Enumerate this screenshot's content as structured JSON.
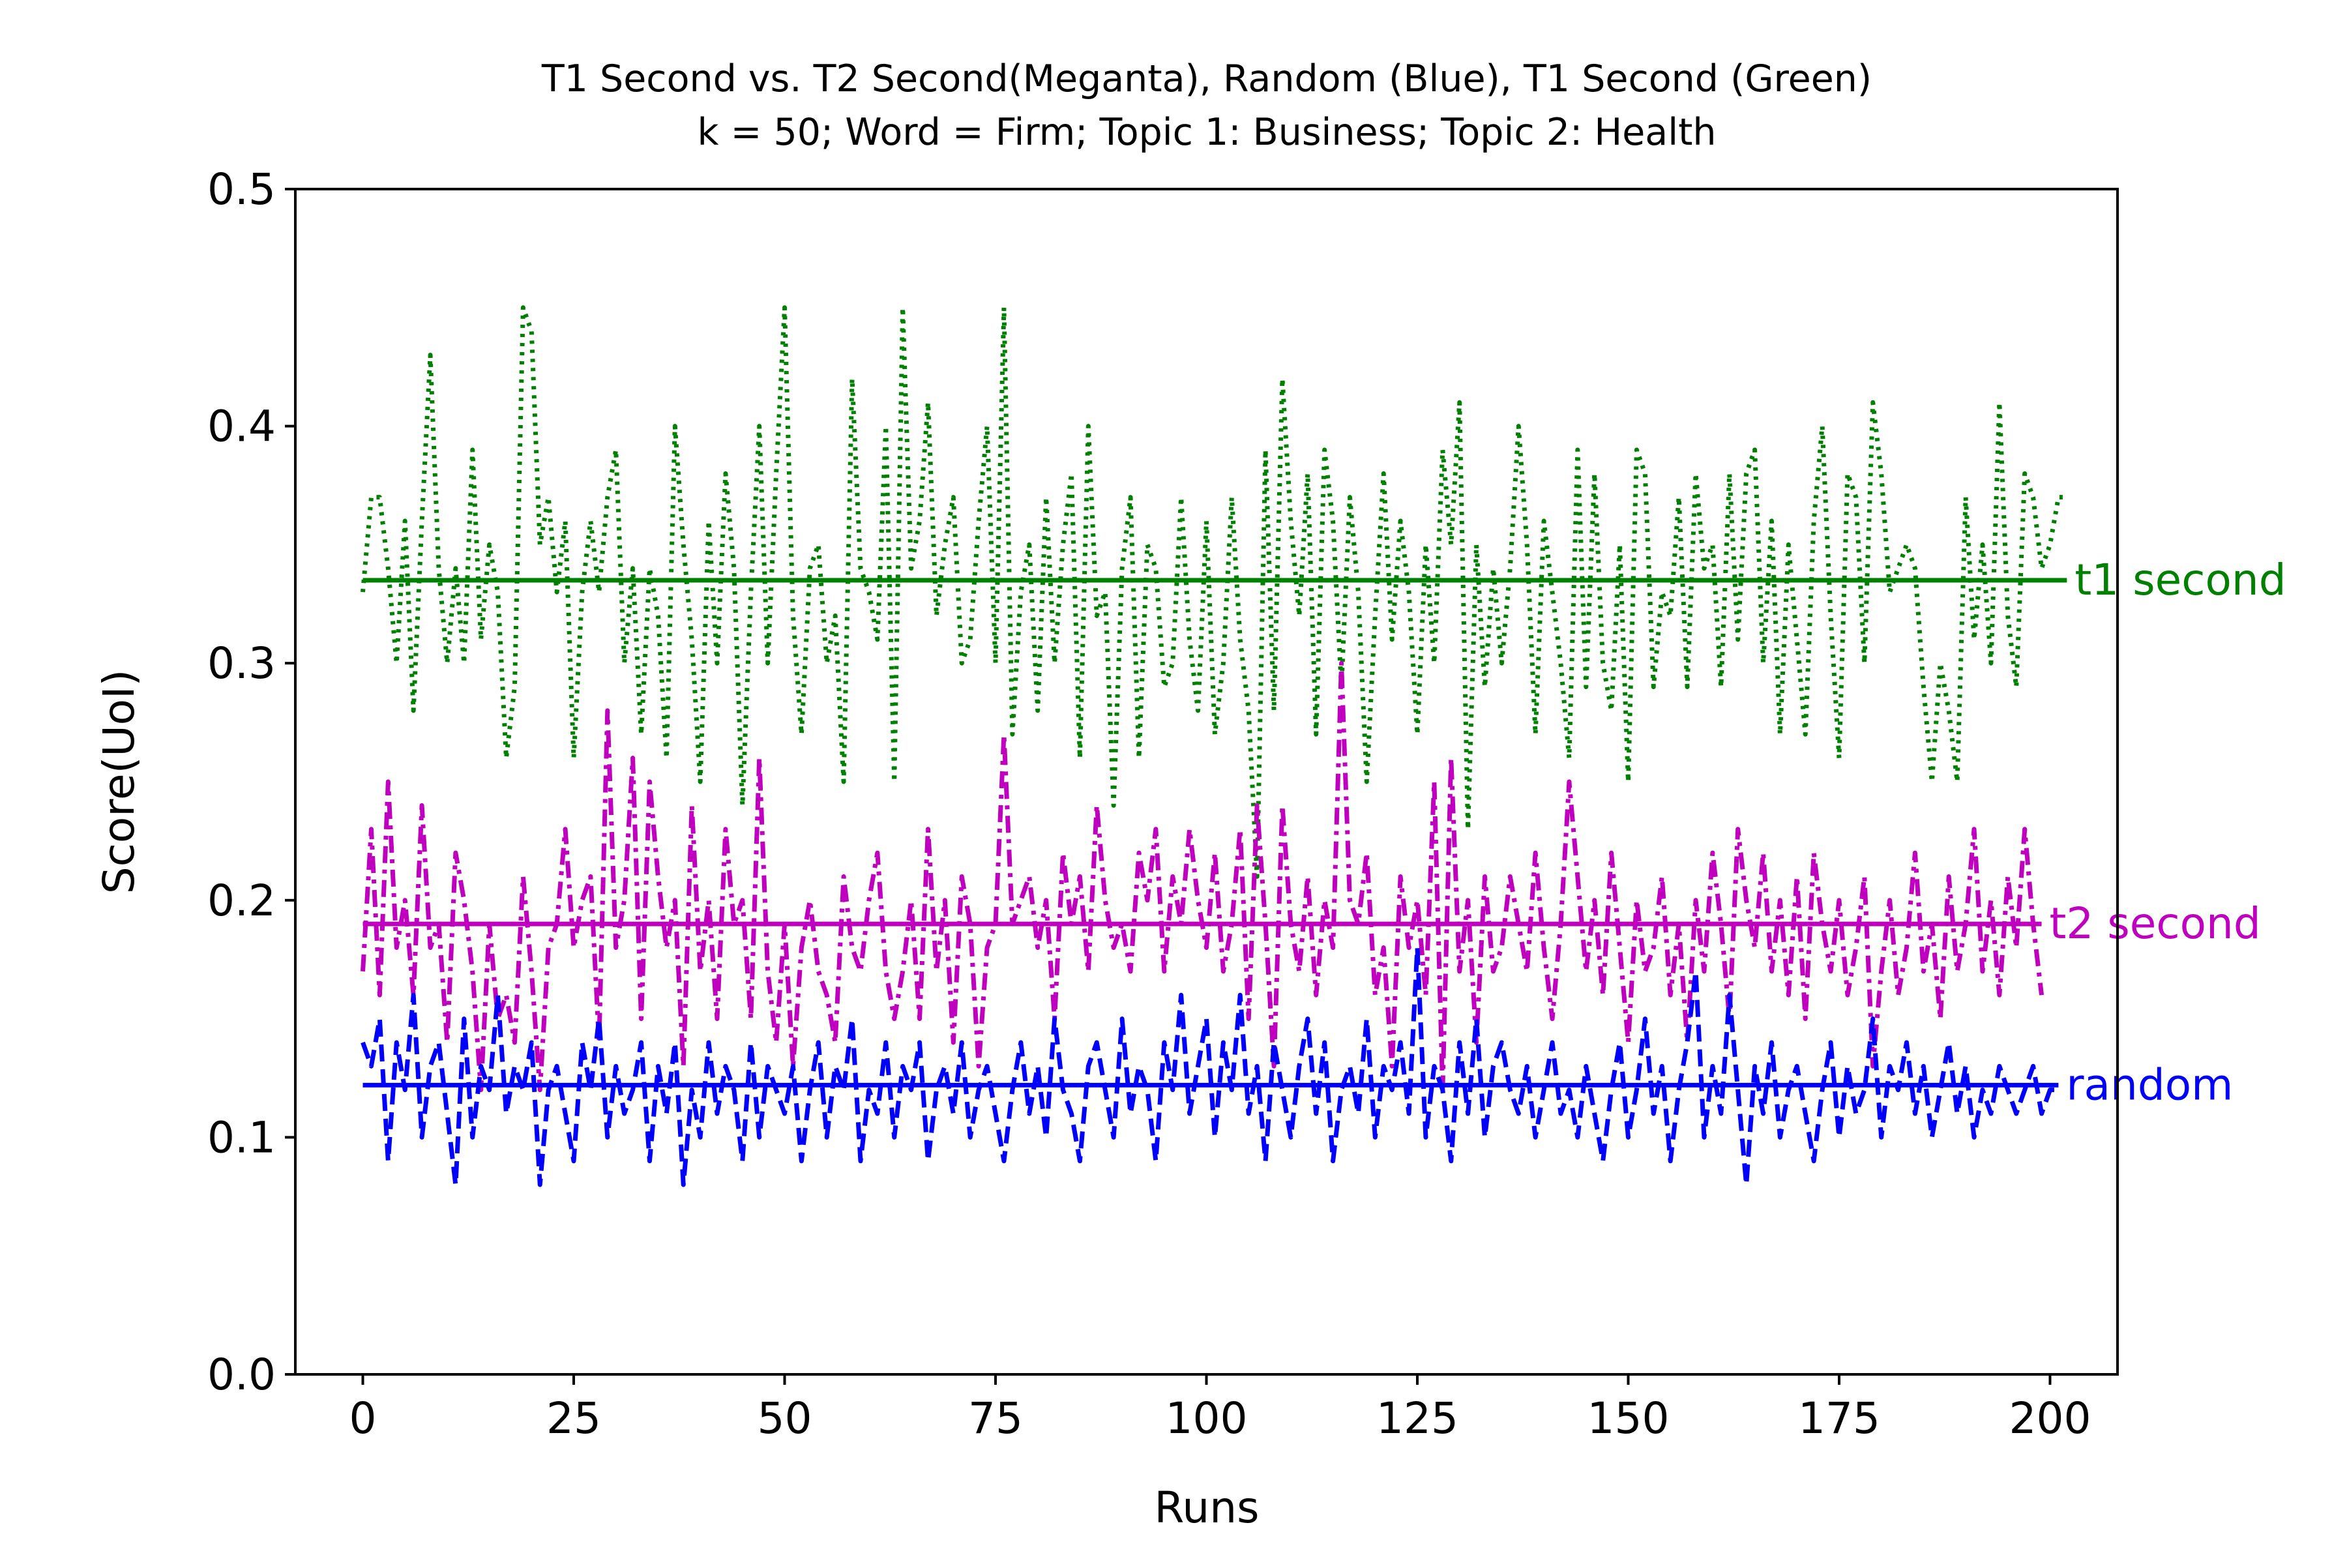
{
  "chart_data": {
    "type": "line",
    "title_line1": "T1 Second vs. T2 Second(Meganta), Random (Blue), T1 Second (Green)",
    "title_line2": "k = 50; Word = Firm; Topic 1: Business; Topic 2: Health",
    "xlabel": "Runs",
    "ylabel": "Score(UoI)",
    "xlim": [
      -8,
      208
    ],
    "ylim": [
      0,
      0.5
    ],
    "xticks": [
      0,
      25,
      50,
      75,
      100,
      125,
      150,
      175,
      200
    ],
    "yticks": [
      0.0,
      0.1,
      0.2,
      0.3,
      0.4,
      0.5
    ],
    "xtick_labels": [
      "0",
      "25",
      "50",
      "75",
      "100",
      "125",
      "150",
      "175",
      "200"
    ],
    "ytick_labels": [
      "0.0",
      "0.1",
      "0.2",
      "0.3",
      "0.4",
      "0.5"
    ],
    "grid": false,
    "series": [
      {
        "name": "t1 second",
        "color": "#008000",
        "style": "dotted",
        "mean": 0.335,
        "values": [
          0.33,
          0.37,
          0.37,
          0.34,
          0.3,
          0.36,
          0.28,
          0.36,
          0.43,
          0.34,
          0.3,
          0.34,
          0.3,
          0.39,
          0.31,
          0.35,
          0.33,
          0.26,
          0.29,
          0.45,
          0.44,
          0.35,
          0.37,
          0.33,
          0.36,
          0.26,
          0.33,
          0.36,
          0.33,
          0.37,
          0.39,
          0.3,
          0.34,
          0.27,
          0.34,
          0.32,
          0.26,
          0.4,
          0.35,
          0.31,
          0.25,
          0.36,
          0.3,
          0.38,
          0.34,
          0.24,
          0.33,
          0.4,
          0.3,
          0.38,
          0.45,
          0.32,
          0.27,
          0.34,
          0.35,
          0.3,
          0.32,
          0.25,
          0.42,
          0.34,
          0.33,
          0.31,
          0.4,
          0.25,
          0.45,
          0.34,
          0.36,
          0.41,
          0.32,
          0.35,
          0.37,
          0.3,
          0.31,
          0.36,
          0.4,
          0.3,
          0.45,
          0.27,
          0.33,
          0.35,
          0.28,
          0.37,
          0.3,
          0.35,
          0.38,
          0.26,
          0.4,
          0.32,
          0.33,
          0.24,
          0.34,
          0.37,
          0.26,
          0.35,
          0.34,
          0.29,
          0.3,
          0.37,
          0.31,
          0.28,
          0.36,
          0.27,
          0.3,
          0.37,
          0.31,
          0.28,
          0.21,
          0.39,
          0.28,
          0.42,
          0.36,
          0.32,
          0.38,
          0.27,
          0.39,
          0.36,
          0.29,
          0.37,
          0.33,
          0.25,
          0.32,
          0.38,
          0.31,
          0.36,
          0.33,
          0.27,
          0.35,
          0.3,
          0.39,
          0.35,
          0.41,
          0.23,
          0.35,
          0.29,
          0.34,
          0.3,
          0.34,
          0.4,
          0.35,
          0.27,
          0.36,
          0.33,
          0.3,
          0.26,
          0.39,
          0.29,
          0.38,
          0.3,
          0.28,
          0.35,
          0.25,
          0.39,
          0.38,
          0.29,
          0.33,
          0.32,
          0.37,
          0.29,
          0.38,
          0.34,
          0.35,
          0.29,
          0.38,
          0.31,
          0.38,
          0.39,
          0.3,
          0.36,
          0.27,
          0.35,
          0.31,
          0.27,
          0.36,
          0.4,
          0.32,
          0.26,
          0.38,
          0.37,
          0.3,
          0.41,
          0.38,
          0.33,
          0.34,
          0.35,
          0.34,
          0.29,
          0.25,
          0.3,
          0.28,
          0.25,
          0.37,
          0.31,
          0.35,
          0.3,
          0.41,
          0.32,
          0.29,
          0.38,
          0.37,
          0.34,
          0.35,
          0.37,
          0.37
        ]
      },
      {
        "name": "t2 second",
        "color": "#bf00bf",
        "style": "dashdot",
        "mean": 0.19,
        "values": [
          0.17,
          0.23,
          0.16,
          0.25,
          0.18,
          0.2,
          0.16,
          0.24,
          0.18,
          0.19,
          0.14,
          0.22,
          0.2,
          0.17,
          0.12,
          0.19,
          0.15,
          0.16,
          0.14,
          0.21,
          0.17,
          0.12,
          0.18,
          0.19,
          0.23,
          0.18,
          0.2,
          0.21,
          0.14,
          0.28,
          0.18,
          0.2,
          0.26,
          0.15,
          0.25,
          0.21,
          0.18,
          0.2,
          0.13,
          0.24,
          0.17,
          0.2,
          0.15,
          0.23,
          0.19,
          0.2,
          0.15,
          0.26,
          0.17,
          0.14,
          0.19,
          0.13,
          0.18,
          0.2,
          0.17,
          0.16,
          0.14,
          0.21,
          0.18,
          0.17,
          0.2,
          0.22,
          0.17,
          0.15,
          0.17,
          0.2,
          0.15,
          0.23,
          0.17,
          0.2,
          0.14,
          0.21,
          0.19,
          0.13,
          0.18,
          0.19,
          0.27,
          0.19,
          0.2,
          0.21,
          0.18,
          0.2,
          0.15,
          0.22,
          0.19,
          0.21,
          0.17,
          0.24,
          0.2,
          0.18,
          0.19,
          0.17,
          0.22,
          0.2,
          0.23,
          0.17,
          0.21,
          0.19,
          0.23,
          0.2,
          0.18,
          0.22,
          0.17,
          0.19,
          0.23,
          0.15,
          0.24,
          0.19,
          0.13,
          0.24,
          0.19,
          0.17,
          0.21,
          0.16,
          0.2,
          0.18,
          0.3,
          0.2,
          0.19,
          0.22,
          0.16,
          0.18,
          0.13,
          0.21,
          0.18,
          0.2,
          0.16,
          0.25,
          0.12,
          0.26,
          0.17,
          0.2,
          0.14,
          0.21,
          0.17,
          0.18,
          0.21,
          0.19,
          0.17,
          0.22,
          0.18,
          0.15,
          0.19,
          0.25,
          0.21,
          0.17,
          0.2,
          0.16,
          0.22,
          0.18,
          0.14,
          0.2,
          0.17,
          0.18,
          0.21,
          0.16,
          0.19,
          0.14,
          0.2,
          0.17,
          0.22,
          0.19,
          0.15,
          0.23,
          0.2,
          0.18,
          0.22,
          0.17,
          0.2,
          0.16,
          0.21,
          0.15,
          0.22,
          0.19,
          0.17,
          0.2,
          0.16,
          0.18,
          0.21,
          0.13,
          0.17,
          0.2,
          0.16,
          0.18,
          0.22,
          0.17,
          0.19,
          0.15,
          0.21,
          0.17,
          0.19,
          0.23,
          0.17,
          0.2,
          0.16,
          0.21,
          0.18,
          0.23,
          0.19,
          0.16
        ]
      },
      {
        "name": "random",
        "color": "#0000ff",
        "style": "dashed",
        "mean": 0.122,
        "values": [
          0.14,
          0.13,
          0.15,
          0.09,
          0.14,
          0.12,
          0.16,
          0.1,
          0.13,
          0.14,
          0.11,
          0.08,
          0.15,
          0.1,
          0.13,
          0.12,
          0.16,
          0.11,
          0.13,
          0.12,
          0.14,
          0.08,
          0.12,
          0.13,
          0.11,
          0.09,
          0.14,
          0.12,
          0.15,
          0.1,
          0.13,
          0.11,
          0.12,
          0.14,
          0.09,
          0.13,
          0.11,
          0.14,
          0.08,
          0.12,
          0.1,
          0.14,
          0.11,
          0.13,
          0.12,
          0.09,
          0.14,
          0.1,
          0.13,
          0.12,
          0.11,
          0.13,
          0.09,
          0.12,
          0.14,
          0.1,
          0.13,
          0.12,
          0.15,
          0.09,
          0.12,
          0.11,
          0.14,
          0.1,
          0.13,
          0.12,
          0.14,
          0.09,
          0.12,
          0.13,
          0.11,
          0.14,
          0.1,
          0.12,
          0.13,
          0.11,
          0.09,
          0.12,
          0.14,
          0.11,
          0.13,
          0.1,
          0.15,
          0.12,
          0.11,
          0.09,
          0.13,
          0.14,
          0.12,
          0.1,
          0.15,
          0.11,
          0.13,
          0.12,
          0.09,
          0.14,
          0.12,
          0.16,
          0.11,
          0.13,
          0.15,
          0.1,
          0.14,
          0.12,
          0.16,
          0.11,
          0.13,
          0.09,
          0.14,
          0.12,
          0.1,
          0.13,
          0.15,
          0.11,
          0.14,
          0.09,
          0.12,
          0.13,
          0.11,
          0.15,
          0.1,
          0.13,
          0.12,
          0.14,
          0.11,
          0.18,
          0.1,
          0.13,
          0.12,
          0.09,
          0.14,
          0.11,
          0.15,
          0.1,
          0.13,
          0.14,
          0.12,
          0.11,
          0.13,
          0.1,
          0.12,
          0.14,
          0.11,
          0.12,
          0.1,
          0.13,
          0.11,
          0.09,
          0.12,
          0.14,
          0.1,
          0.12,
          0.15,
          0.11,
          0.13,
          0.09,
          0.12,
          0.14,
          0.17,
          0.1,
          0.13,
          0.11,
          0.16,
          0.12,
          0.08,
          0.13,
          0.11,
          0.14,
          0.1,
          0.12,
          0.13,
          0.11,
          0.09,
          0.12,
          0.14,
          0.1,
          0.13,
          0.11,
          0.12,
          0.15,
          0.1,
          0.13,
          0.12,
          0.14,
          0.11,
          0.13,
          0.1,
          0.12,
          0.14,
          0.11,
          0.13,
          0.1,
          0.12,
          0.11,
          0.13,
          0.12,
          0.11,
          0.12,
          0.13,
          0.11,
          0.12,
          0.12
        ]
      }
    ]
  }
}
